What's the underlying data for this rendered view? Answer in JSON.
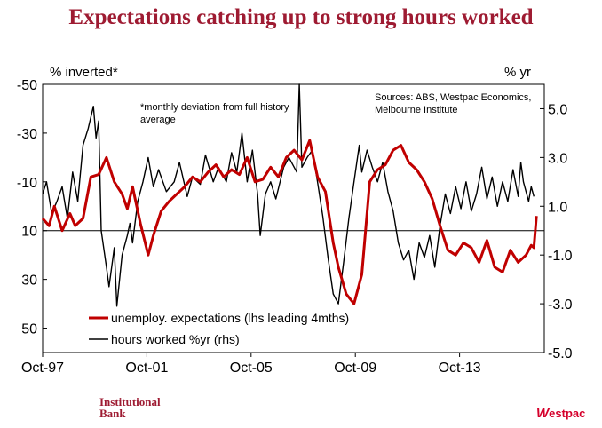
{
  "title": "Expectations catching up to strong hours worked",
  "branding": {
    "left_line1": "Institutional",
    "left_line2": "Bank",
    "right_mark": "W",
    "right_text": "estpac"
  },
  "colors": {
    "title": "#9e1b32",
    "unemploy": "#c00000",
    "hours": "#000000",
    "brand_right": "#d5002b"
  },
  "chart_data": {
    "type": "line",
    "lhs_axis": {
      "label": "% inverted*",
      "range": [
        -50,
        60
      ],
      "inverted": true,
      "ticks": [
        -50,
        -30,
        -10,
        10,
        30,
        50
      ],
      "tick_labels": [
        "-50",
        "-30",
        "-10",
        "10",
        "30",
        "50"
      ]
    },
    "rhs_axis": {
      "label": "% yr",
      "range": [
        -5.0,
        6.0
      ],
      "ticks": [
        5.0,
        3.0,
        1.0,
        -1.0,
        -3.0,
        -5.0
      ],
      "tick_labels": [
        "5.0",
        "3.0",
        "1.0",
        "-1.0",
        "-3.0",
        "-5.0"
      ]
    },
    "x_axis": {
      "range": [
        1997.75,
        2017.0
      ],
      "ticks": [
        1997.75,
        2001.75,
        2005.75,
        2009.75,
        2013.75
      ],
      "tick_labels": [
        "Oct-97",
        "Oct-01",
        "Oct-05",
        "Oct-09",
        "Oct-13"
      ]
    },
    "footnote": "*monthly deviation from full history average",
    "source": "Sources: ABS, Westpac Economics, Melbourne Institute",
    "legend": {
      "placement": "bottom-left",
      "entries": [
        "unemploy. expectations (lhs leading 4mths)",
        "hours worked %yr (rhs)"
      ]
    },
    "series": [
      {
        "name": "unemploy. expectations (lhs leading 4mths)",
        "axis": "lhs",
        "color": "#c00000",
        "x": [
          1997.75,
          1998.0,
          1998.2,
          1998.5,
          1998.8,
          1999.0,
          1999.3,
          1999.6,
          1999.9,
          2000.2,
          2000.5,
          2000.8,
          2001.0,
          2001.2,
          2001.5,
          2001.8,
          2002.0,
          2002.3,
          2002.6,
          2002.9,
          2003.2,
          2003.5,
          2003.8,
          2004.1,
          2004.4,
          2004.7,
          2005.0,
          2005.3,
          2005.6,
          2005.9,
          2006.2,
          2006.5,
          2006.8,
          2007.1,
          2007.4,
          2007.7,
          2008.0,
          2008.3,
          2008.6,
          2008.9,
          2009.1,
          2009.4,
          2009.7,
          2010.0,
          2010.3,
          2010.6,
          2010.9,
          2011.2,
          2011.5,
          2011.8,
          2012.1,
          2012.4,
          2012.7,
          2013.0,
          2013.3,
          2013.6,
          2013.9,
          2014.2,
          2014.5,
          2014.8,
          2015.1,
          2015.4,
          2015.7,
          2016.0,
          2016.3,
          2016.5,
          2016.6,
          2016.7
        ],
        "y": [
          5,
          8,
          0,
          10,
          3,
          8,
          5,
          -12,
          -13,
          -20,
          -10,
          -5,
          1,
          -8,
          7,
          20,
          12,
          2,
          -2,
          -5,
          -8,
          -12,
          -10,
          -14,
          -17,
          -12,
          -15,
          -13,
          -20,
          -10,
          -11,
          -16,
          -12,
          -20,
          -23,
          -19,
          -27,
          -12,
          -6,
          15,
          25,
          36,
          40,
          28,
          -10,
          -15,
          -17,
          -23,
          -25,
          -18,
          -15,
          -10,
          -3,
          8,
          18,
          20,
          15,
          17,
          23,
          14,
          25,
          27,
          18,
          23,
          20,
          16,
          17,
          4
        ]
      },
      {
        "name": "hours worked %yr (rhs)",
        "axis": "rhs",
        "color": "#000000",
        "x": [
          1997.75,
          1997.9,
          1998.1,
          1998.3,
          1998.5,
          1998.7,
          1998.9,
          1999.1,
          1999.3,
          1999.5,
          1999.7,
          1999.8,
          1999.9,
          2000.0,
          2000.2,
          2000.3,
          2000.5,
          2000.6,
          2000.8,
          2001.0,
          2001.1,
          2001.2,
          2001.4,
          2001.6,
          2001.8,
          2002.0,
          2002.2,
          2002.5,
          2002.8,
          2003.0,
          2003.3,
          2003.5,
          2003.8,
          2004.0,
          2004.3,
          2004.5,
          2004.8,
          2005.0,
          2005.2,
          2005.4,
          2005.6,
          2005.8,
          2006.0,
          2006.1,
          2006.3,
          2006.5,
          2006.7,
          2007.0,
          2007.2,
          2007.5,
          2007.6,
          2007.7,
          2007.9,
          2008.1,
          2008.3,
          2008.5,
          2008.7,
          2008.9,
          2009.1,
          2009.3,
          2009.5,
          2009.7,
          2009.9,
          2010.0,
          2010.2,
          2010.4,
          2010.6,
          2010.8,
          2011.0,
          2011.2,
          2011.4,
          2011.6,
          2011.8,
          2012.0,
          2012.2,
          2012.4,
          2012.6,
          2012.8,
          2013.0,
          2013.2,
          2013.4,
          2013.6,
          2013.8,
          2014.0,
          2014.2,
          2014.4,
          2014.6,
          2014.8,
          2015.0,
          2015.2,
          2015.4,
          2015.6,
          2015.8,
          2016.0,
          2016.1,
          2016.2,
          2016.4,
          2016.5,
          2016.6
        ],
        "y": [
          1.5,
          2.0,
          0.7,
          1.2,
          1.8,
          0.5,
          2.4,
          1.2,
          3.5,
          4.2,
          5.1,
          3.8,
          4.5,
          0.0,
          -1.5,
          -2.3,
          -0.7,
          -3.1,
          -1.0,
          -0.2,
          0.3,
          -0.5,
          1.2,
          2.0,
          3.0,
          1.8,
          2.5,
          1.6,
          2.0,
          2.8,
          1.4,
          2.2,
          1.9,
          3.1,
          2.0,
          2.6,
          2.0,
          3.2,
          2.4,
          4.0,
          2.0,
          3.3,
          1.5,
          -0.2,
          1.5,
          2.0,
          1.3,
          2.6,
          3.0,
          2.4,
          6.0,
          2.6,
          3.0,
          3.3,
          2.0,
          0.6,
          -1.1,
          -2.6,
          -3.0,
          -1.3,
          0.5,
          2.0,
          3.5,
          2.4,
          3.3,
          2.6,
          2.0,
          2.8,
          1.6,
          0.8,
          -0.5,
          -1.2,
          -0.8,
          -2.0,
          -0.5,
          -1.1,
          -0.2,
          -1.5,
          0.2,
          1.5,
          0.7,
          1.8,
          0.9,
          2.0,
          0.8,
          1.5,
          2.6,
          1.3,
          2.2,
          1.0,
          2.0,
          1.2,
          2.5,
          1.4,
          2.8,
          2.0,
          1.2,
          1.8,
          1.4
        ]
      }
    ]
  }
}
